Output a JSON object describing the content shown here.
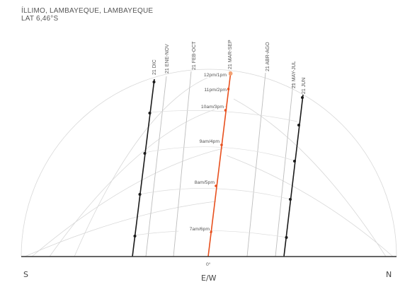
{
  "header": {
    "location": "ÍLLIMO, LAMBAYEQUE, LAMBAYEQUE",
    "latitude": "LAT 6,46°S"
  },
  "directions": {
    "south": "S",
    "north": "N",
    "east_west": "E/W",
    "zero": "0°"
  },
  "dates": [
    {
      "label": "21 DIC"
    },
    {
      "label": "21 ENE-NOV"
    },
    {
      "label": "21 FEB-OCT"
    },
    {
      "label": "21 MAR-SEP"
    },
    {
      "label": "21 ABR-AGO"
    },
    {
      "label": "21 MAY-JUL"
    },
    {
      "label": "21 JUN"
    }
  ],
  "hours": [
    {
      "label": "12pm/1pm"
    },
    {
      "label": "11pm/2pm"
    },
    {
      "label": "10am/3pm"
    },
    {
      "label": "9am/4pm"
    },
    {
      "label": "8am/5pm"
    },
    {
      "label": "7am/6pm"
    }
  ],
  "colors": {
    "equinox": "#e8501e",
    "solstice": "#1a1a1a",
    "grid": "#cccccc",
    "axis": "#333333"
  }
}
